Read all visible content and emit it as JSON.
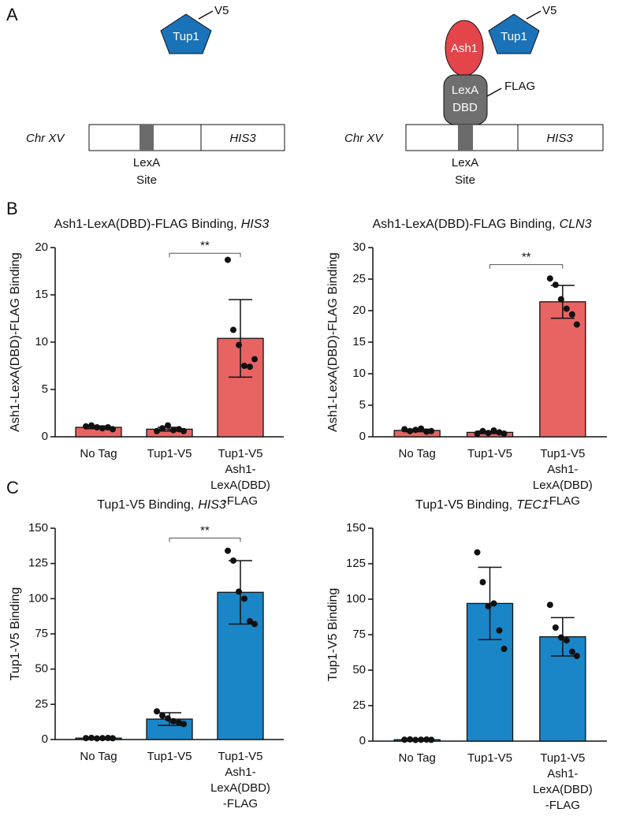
{
  "panel_labels": [
    "A",
    "B",
    "C"
  ],
  "diagram_a": {
    "left": {
      "protein": "Tup1",
      "tag": "V5",
      "chromosome": "Chr XV",
      "gene": "HIS3",
      "site": [
        "LexA",
        "Site"
      ]
    },
    "right": {
      "protein": "Tup1",
      "tag": "V5",
      "fusion": "Ash1",
      "dbd": [
        "LexA",
        "DBD"
      ],
      "dbd_tag": "FLAG",
      "chromosome": "Chr XV",
      "gene": "HIS3",
      "site": [
        "LexA",
        "Site"
      ]
    }
  },
  "chart_data": [
    {
      "type": "bar",
      "title": "Ash1-LexA(DBD)-FLAG Binding,",
      "title_italic": "HIS3",
      "ylabel": "Ash1-LexA(DBD)-FLAG Binding",
      "categories": [
        "No Tag",
        "Tup1-V5",
        [
          "Tup1-V5",
          "Ash1-",
          "LexA(DBD)",
          "-FLAG"
        ]
      ],
      "values": [
        1.0,
        0.8,
        10.4
      ],
      "errors": [
        0.15,
        0.2,
        4.1
      ],
      "points": [
        [
          1.1,
          1.2,
          1.0,
          0.9,
          1.0,
          0.8
        ],
        [
          0.6,
          0.9,
          1.2,
          0.7,
          0.8,
          0.6
        ],
        [
          18.7,
          11.3,
          9.7,
          7.5,
          7.4,
          8.2
        ]
      ],
      "color": "#e86462",
      "ylim": [
        0,
        20
      ],
      "yticks": [
        0,
        5,
        10,
        15,
        20
      ],
      "significance": {
        "label": "**",
        "from": 1,
        "to": 2,
        "y": 19.4
      }
    },
    {
      "type": "bar",
      "title": "Ash1-LexA(DBD)-FLAG Binding,",
      "title_italic": "CLN3",
      "ylabel": "Ash1-LexA(DBD)-FLAG Binding",
      "categories": [
        "No Tag",
        "Tup1-V5",
        [
          "Tup1-V5",
          "Ash1-",
          "LexA(DBD)",
          "-FLAG"
        ]
      ],
      "values": [
        1.0,
        0.7,
        21.4
      ],
      "errors": [
        0.2,
        0.2,
        2.6
      ],
      "points": [
        [
          1.2,
          0.9,
          1.1,
          1.3,
          0.8,
          0.9
        ],
        [
          0.5,
          0.9,
          0.6,
          1.0,
          0.7,
          0.5
        ],
        [
          25.1,
          24.1,
          21.8,
          20.3,
          19.4,
          17.8
        ]
      ],
      "color": "#e86462",
      "ylim": [
        0,
        30
      ],
      "yticks": [
        0,
        5,
        10,
        15,
        20,
        25,
        30
      ],
      "significance": {
        "label": "**",
        "from": 1,
        "to": 2,
        "y": 27.3
      }
    },
    {
      "type": "bar",
      "title": "Tup1-V5 Binding,",
      "title_italic": "HIS3",
      "ylabel": "Tup1-V5 Binding",
      "categories": [
        "No Tag",
        "Tup1-V5",
        [
          "Tup1-V5",
          "Ash1-",
          "LexA(DBD)",
          "-FLAG"
        ]
      ],
      "values": [
        1,
        14.5,
        104.5
      ],
      "errors": [
        0.3,
        4.5,
        22.5
      ],
      "points": [
        [
          1,
          1.2,
          0.8,
          1,
          1.1,
          0.9
        ],
        [
          20,
          17,
          15,
          13,
          12,
          11
        ],
        [
          134,
          127,
          105,
          100,
          84,
          82
        ]
      ],
      "color": "#1a86c8",
      "ylim": [
        0,
        150
      ],
      "yticks": [
        0,
        25,
        50,
        75,
        100,
        125,
        150
      ],
      "significance": {
        "label": "**",
        "from": 1,
        "to": 2,
        "y": 143
      }
    },
    {
      "type": "bar",
      "title": "Tup1-V5 Binding,",
      "title_italic": "TEC1",
      "ylabel": "Tup1-V5 Binding",
      "categories": [
        "No Tag",
        "Tup1-V5",
        [
          "Tup1-V5",
          "Ash1-",
          "LexA(DBD)",
          "-FLAG"
        ]
      ],
      "values": [
        1,
        97,
        73.5
      ],
      "errors": [
        0.3,
        25.5,
        13.5
      ],
      "points": [
        [
          1,
          1.2,
          0.8,
          1,
          1.1,
          0.9
        ],
        [
          133,
          112,
          95,
          97,
          78,
          65
        ],
        [
          96,
          80,
          73,
          71,
          63,
          60
        ]
      ],
      "color": "#1a86c8",
      "ylim": [
        0,
        150
      ],
      "yticks": [
        0,
        25,
        50,
        75,
        100,
        125,
        150
      ]
    }
  ]
}
